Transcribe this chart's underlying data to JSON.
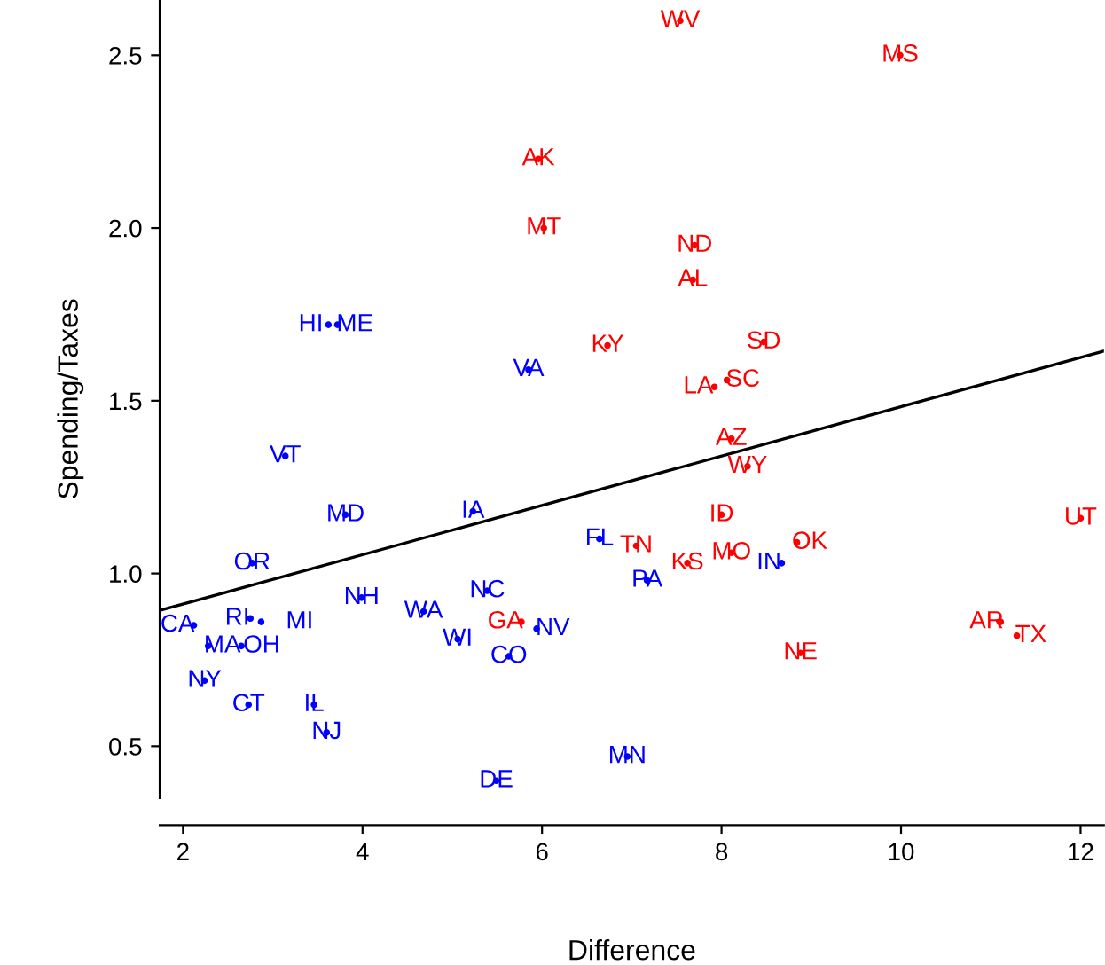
{
  "chart_data": {
    "type": "scatter",
    "xlabel": "Difference",
    "ylabel": "Spending/Taxes",
    "xlim": [
      1.74,
      12.26
    ],
    "ylim": [
      0.35,
      2.66
    ],
    "xticks": [
      2,
      4,
      6,
      8,
      10,
      12
    ],
    "yticks": [
      0.5,
      {
        "value": 1,
        "label": "1.0"
      },
      1.5,
      {
        "value": 2,
        "label": "2.0"
      },
      2.5
    ],
    "grid": false,
    "marker": "none",
    "series": [
      {
        "color": "#ff0000",
        "x": [
          7.54,
          9.99,
          5.96,
          6.02,
          7.7,
          7.68,
          6.73,
          8.47,
          8.06,
          7.92,
          8.11,
          8.29,
          8.0,
          7.05,
          8.11,
          8.84,
          7.62,
          12.0,
          8.88,
          11.11,
          11.29,
          5.77
        ],
        "values": [
          2.6,
          2.5,
          2.2,
          2.0,
          1.95,
          1.85,
          1.66,
          1.67,
          1.56,
          1.54,
          1.39,
          1.31,
          1.17,
          1.08,
          1.06,
          1.09,
          1.03,
          1.16,
          0.77,
          0.86,
          0.82,
          0.86
        ],
        "value_labels": [
          "WV",
          "MS",
          "AK",
          "MT",
          "ND",
          "AL",
          "KY",
          "SD",
          "SC",
          "LA",
          "AZ",
          "WY",
          "ID",
          "TN",
          "MO",
          "OK",
          "KS",
          "UT",
          "NE",
          "AR",
          "TX",
          "GA"
        ]
      },
      {
        "color": "#0000ff",
        "x": [
          3.62,
          3.72,
          5.85,
          3.14,
          3.81,
          5.23,
          6.64,
          7.17,
          8.67,
          2.77,
          3.99,
          5.39,
          4.68,
          5.06,
          5.94,
          5.63,
          2.12,
          2.75,
          2.87,
          2.28,
          2.65,
          2.24,
          2.73,
          3.46,
          3.6,
          5.49,
          6.95
        ],
        "values": [
          1.72,
          1.72,
          1.59,
          1.34,
          1.17,
          1.18,
          1.1,
          0.98,
          1.03,
          1.03,
          0.93,
          0.95,
          0.89,
          0.81,
          0.84,
          0.76,
          0.85,
          0.87,
          0.86,
          0.79,
          0.79,
          0.69,
          0.62,
          0.62,
          0.54,
          0.4,
          0.47
        ],
        "value_labels": [
          "HI",
          "ME",
          "VA",
          "VT",
          "MD",
          "IA",
          "FL",
          "PA",
          "IN",
          "OR",
          "NH",
          "NC",
          "WA",
          "WI",
          "NV",
          "CO",
          "CA",
          "RI",
          "MI",
          "MA",
          "OH",
          "NY",
          "CT",
          "IL",
          "NJ",
          "DE",
          "MN"
        ]
      },
      {
        "type": "line",
        "color": "#000000",
        "x": [
          1.74,
          12.26
        ],
        "values": [
          0.893,
          1.644
        ]
      }
    ]
  }
}
